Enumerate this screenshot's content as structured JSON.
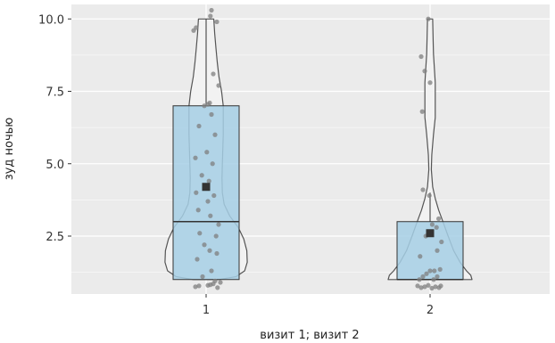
{
  "chart_data": {
    "type": "violin-box",
    "xlabel": "визит 1; визит 2",
    "ylabel": "зуд ночью",
    "categories": [
      "1",
      "2"
    ],
    "ylim": [
      0.5,
      10.5
    ],
    "yticks": [
      2.5,
      5.0,
      7.5,
      10.0
    ],
    "ytick_labels": [
      "2.5",
      "5.0",
      "7.5",
      "10.0"
    ],
    "grid": true,
    "colors": {
      "panel": "#ebebeb",
      "grid": "#ffffff",
      "violin_fill": "#f2f2f2",
      "violin_stroke": "#555555",
      "box_fill": "#a6cfe5",
      "box_stroke": "#333333",
      "mean_marker": "#333333",
      "point": "#7f7f7f"
    },
    "groups": [
      {
        "category": "1",
        "box": {
          "q1": 1.0,
          "median": 3.0,
          "q3": 7.0,
          "whisker_low": 1.0,
          "whisker_high": 10.0
        },
        "mean": 4.2,
        "violin_profile": [
          [
            1.0,
            0.3
          ],
          [
            1.1,
            0.7
          ],
          [
            1.3,
            0.9
          ],
          [
            1.6,
            0.96
          ],
          [
            2.0,
            0.95
          ],
          [
            2.4,
            0.88
          ],
          [
            2.8,
            0.75
          ],
          [
            3.2,
            0.55
          ],
          [
            3.6,
            0.42
          ],
          [
            4.0,
            0.38
          ],
          [
            4.5,
            0.37
          ],
          [
            5.0,
            0.38
          ],
          [
            5.5,
            0.39
          ],
          [
            6.0,
            0.4
          ],
          [
            6.5,
            0.4
          ],
          [
            7.0,
            0.4
          ],
          [
            7.5,
            0.36
          ],
          [
            8.0,
            0.3
          ],
          [
            8.5,
            0.26
          ],
          [
            9.0,
            0.23
          ],
          [
            9.5,
            0.2
          ],
          [
            10.0,
            0.18
          ]
        ],
        "points": [
          [
            -0.3,
            0.75
          ],
          [
            -0.2,
            0.78
          ],
          [
            0.05,
            0.8
          ],
          [
            0.12,
            0.82
          ],
          [
            0.2,
            0.85
          ],
          [
            0.25,
            0.95
          ],
          [
            0.32,
            0.72
          ],
          [
            0.4,
            0.9
          ],
          [
            -0.1,
            1.1
          ],
          [
            0.15,
            1.3
          ],
          [
            -0.25,
            1.7
          ],
          [
            0.3,
            1.9
          ],
          [
            0.1,
            2.0
          ],
          [
            -0.05,
            2.2
          ],
          [
            0.28,
            2.5
          ],
          [
            -0.18,
            2.6
          ],
          [
            0.35,
            2.9
          ],
          [
            0.12,
            3.2
          ],
          [
            -0.22,
            3.4
          ],
          [
            0.05,
            3.7
          ],
          [
            0.22,
            3.9
          ],
          [
            -0.28,
            4.0
          ],
          [
            0.08,
            4.4
          ],
          [
            -0.12,
            4.6
          ],
          [
            0.18,
            5.0
          ],
          [
            -0.3,
            5.2
          ],
          [
            0.02,
            5.4
          ],
          [
            0.25,
            6.0
          ],
          [
            -0.2,
            6.3
          ],
          [
            0.15,
            6.7
          ],
          [
            -0.05,
            7.0
          ],
          [
            0.05,
            7.05
          ],
          [
            0.1,
            7.1
          ],
          [
            0.35,
            7.7
          ],
          [
            0.2,
            8.1
          ],
          [
            -0.35,
            9.6
          ],
          [
            -0.28,
            9.7
          ],
          [
            0.12,
            10.1
          ],
          [
            0.15,
            10.3
          ],
          [
            0.3,
            9.9
          ]
        ]
      },
      {
        "category": "2",
        "box": {
          "q1": 1.0,
          "median": 1.0,
          "q3": 3.0,
          "whisker_low": 1.0,
          "whisker_high": 4.0
        },
        "mean": 2.6,
        "violin_profile": [
          [
            1.0,
            0.98
          ],
          [
            1.15,
            0.95
          ],
          [
            1.3,
            0.85
          ],
          [
            1.6,
            0.7
          ],
          [
            2.0,
            0.55
          ],
          [
            2.5,
            0.42
          ],
          [
            3.0,
            0.3
          ],
          [
            3.4,
            0.2
          ],
          [
            3.8,
            0.12
          ],
          [
            4.2,
            0.06
          ],
          [
            4.8,
            0.03
          ],
          [
            5.3,
            0.04
          ],
          [
            6.0,
            0.08
          ],
          [
            6.6,
            0.12
          ],
          [
            7.2,
            0.12
          ],
          [
            7.8,
            0.12
          ],
          [
            8.3,
            0.1
          ],
          [
            8.8,
            0.08
          ],
          [
            9.3,
            0.07
          ],
          [
            10.0,
            0.06
          ]
        ],
        "points": [
          [
            -0.35,
            0.78
          ],
          [
            -0.25,
            0.72
          ],
          [
            -0.15,
            0.75
          ],
          [
            -0.05,
            0.8
          ],
          [
            0.05,
            0.7
          ],
          [
            0.15,
            0.75
          ],
          [
            0.25,
            0.72
          ],
          [
            0.3,
            0.78
          ],
          [
            -0.3,
            1.0
          ],
          [
            0.1,
            1.0
          ],
          [
            -0.2,
            1.1
          ],
          [
            0.2,
            1.1
          ],
          [
            -0.1,
            1.2
          ],
          [
            0.0,
            1.3
          ],
          [
            0.12,
            1.3
          ],
          [
            0.28,
            1.35
          ],
          [
            -0.28,
            1.8
          ],
          [
            0.2,
            2.0
          ],
          [
            0.32,
            2.3
          ],
          [
            -0.12,
            2.5
          ],
          [
            0.18,
            2.8
          ],
          [
            0.06,
            2.9
          ],
          [
            0.24,
            3.1
          ],
          [
            -0.02,
            3.9
          ],
          [
            -0.2,
            4.1
          ],
          [
            -0.22,
            6.8
          ],
          [
            -0.15,
            8.2
          ],
          [
            0.0,
            7.8
          ],
          [
            -0.05,
            10.0
          ],
          [
            -0.25,
            8.7
          ]
        ]
      }
    ]
  }
}
